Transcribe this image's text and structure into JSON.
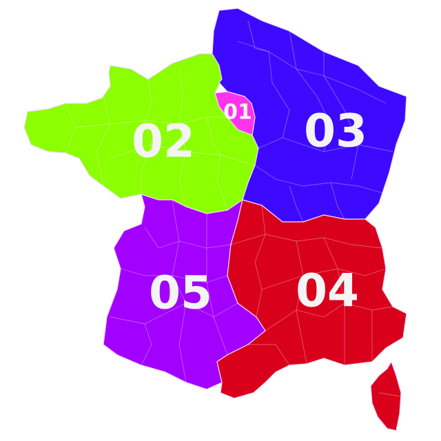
{
  "map": {
    "zones": [
      {
        "code": "01",
        "color": "#ff33ee"
      },
      {
        "code": "02",
        "color": "#8cff00"
      },
      {
        "code": "03",
        "color": "#3d0aff"
      },
      {
        "code": "04",
        "color": "#d9001b"
      },
      {
        "code": "05",
        "color": "#a200ff"
      }
    ]
  }
}
